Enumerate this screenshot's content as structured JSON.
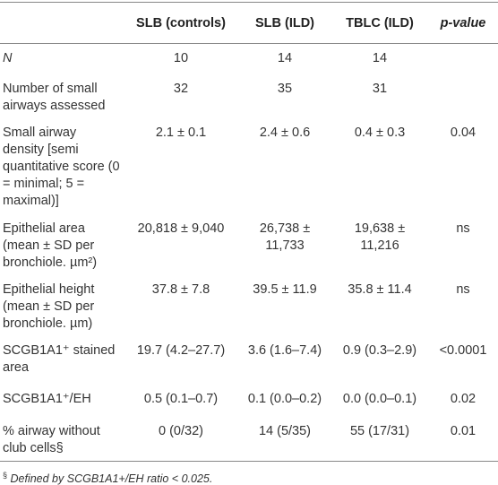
{
  "table": {
    "header": [
      "",
      "SLB (controls)",
      "SLB (ILD)",
      "TBLC (ILD)",
      "p-value"
    ],
    "rows": [
      [
        "N",
        "10",
        "14",
        "14",
        ""
      ],
      [
        "Number of small airways assessed",
        "32",
        "35",
        "31",
        ""
      ],
      [
        "Small airway density [semi quantitative score (0 = minimal; 5 = maximal)]",
        "2.1 ± 0.1",
        "2.4 ± 0.6",
        "0.4 ± 0.3",
        "0.04"
      ],
      [
        "Epithelial area (mean ± SD per bronchiole. µm²)",
        "20,818 ± 9,040",
        "26,738 ± 11,733",
        "19,638 ± 11,216",
        "ns"
      ],
      [
        "Epithelial height (mean ± SD per bronchiole. µm)",
        "37.8 ± 7.8",
        "39.5 ± 11.9",
        "35.8 ± 11.4",
        "ns"
      ],
      [
        "SCGB1A1⁺ stained area",
        "19.7 (4.2–27.7)",
        "3.6 (1.6–7.4)",
        "0.9 (0.3–2.9)",
        "<0.0001"
      ],
      [
        "SCGB1A1⁺/EH",
        "0.5 (0.1–0.7)",
        "0.1 (0.0–0.2)",
        "0.0 (0.0–0.1)",
        "0.02"
      ],
      [
        "% airway without club cells§",
        "0 (0/32)",
        "14 (5/35)",
        "55 (17/31)",
        "0.01"
      ]
    ]
  },
  "footnote": {
    "mark": "§",
    "text": "Defined by SCGB1A1+/EH ratio < 0.025."
  }
}
